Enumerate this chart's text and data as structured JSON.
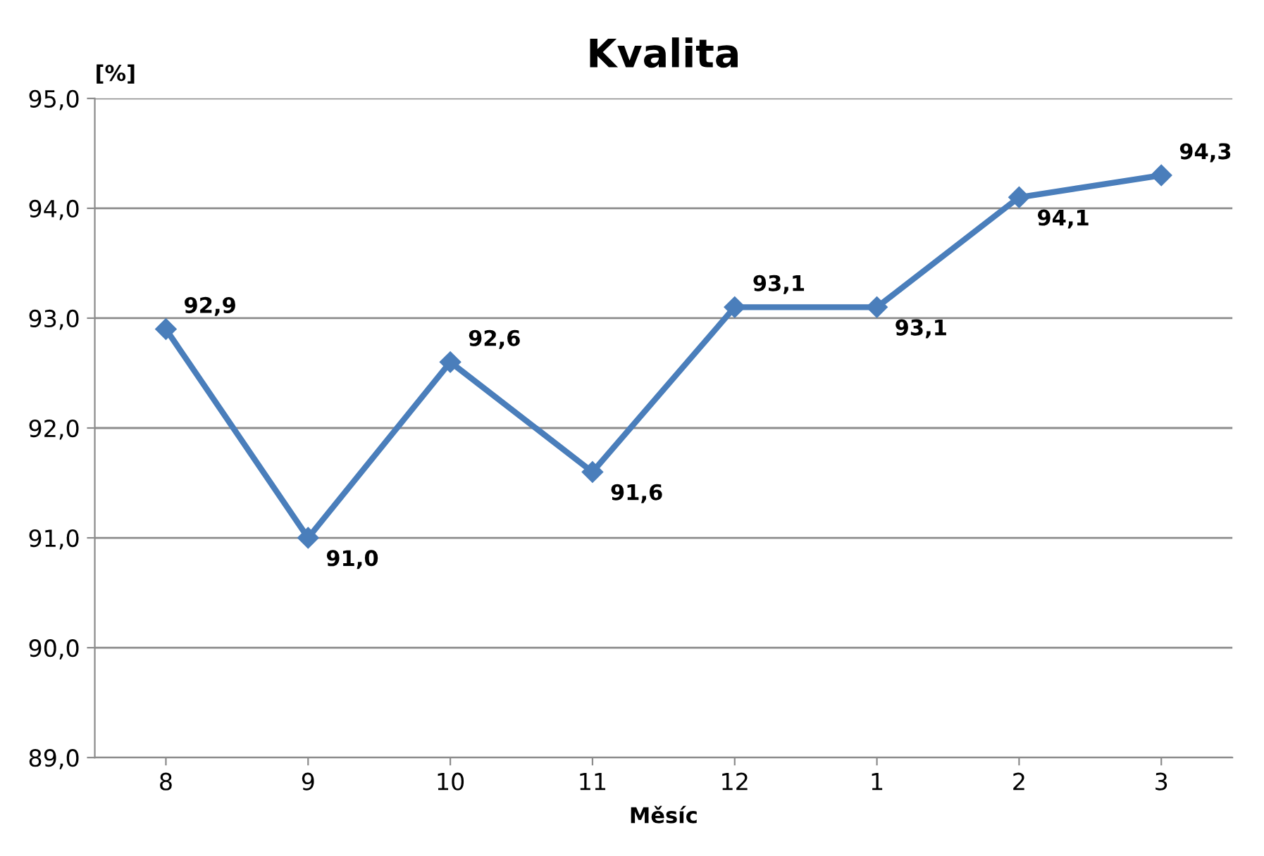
{
  "chart_data": {
    "type": "line",
    "title": "Kvalita",
    "xlabel": "Měsíc",
    "ylabel": "[%]",
    "categories": [
      "8",
      "9",
      "10",
      "11",
      "12",
      "1",
      "2",
      "3"
    ],
    "series": [
      {
        "color": "#4a7ebb",
        "values": [
          92.9,
          91.0,
          92.6,
          91.6,
          93.1,
          93.1,
          94.1,
          94.3
        ],
        "value_labels": [
          "92,9",
          "91,0",
          "92,6",
          "91,6",
          "93,1",
          "93,1",
          "94,1",
          "94,3"
        ]
      }
    ],
    "ylim": [
      89.0,
      95.0
    ],
    "yticks": [
      {
        "value": 89.0,
        "label": "89,0"
      },
      {
        "value": 90.0,
        "label": "90,0"
      },
      {
        "value": 91.0,
        "label": "91,0"
      },
      {
        "value": 92.0,
        "label": "92,0"
      },
      {
        "value": 93.0,
        "label": "93,0"
      },
      {
        "value": 94.0,
        "label": "94,0"
      },
      {
        "value": 95.0,
        "label": "95,0"
      }
    ],
    "grid": "y",
    "marker": "diamond",
    "line_style": "solid",
    "legend": false
  }
}
